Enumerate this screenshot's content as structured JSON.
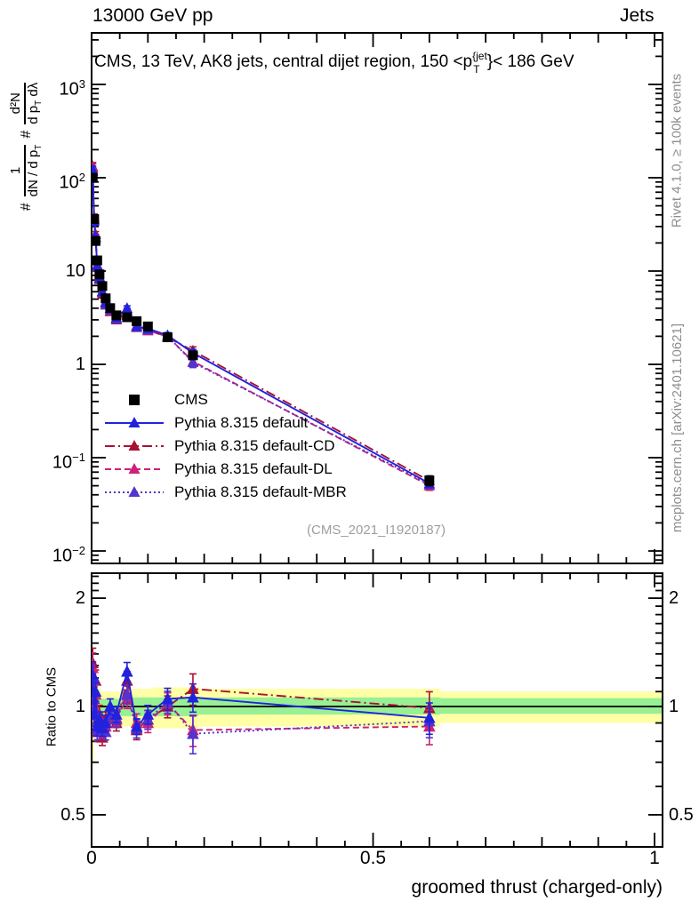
{
  "header": {
    "left": "13000 GeV pp",
    "right": "Jets"
  },
  "plot_title": {
    "prefix": "CMS, 13 TeV, AK8 jets, central dijet region, 150 <p",
    "sup": "{jet",
    "sub": "T",
    "suffix": "}< 186 GeV"
  },
  "watermark": "(CMS_2021_I1920187)",
  "side_notes": {
    "top_right": "Rivet 4.1.0, ≥ 100k events",
    "bottom_right": "mcplots.cern.ch [arXiv:2401.10621]"
  },
  "y_axis_title_parts": {
    "hash1": "#",
    "f1_num": "1",
    "f1_den": "dN / d p",
    "f1_den_sub": "T",
    "hash2": "#",
    "f2_num": "d²N",
    "f2_den_a": "d p",
    "f2_den_sub": "T",
    "f2_den_b": " dλ"
  },
  "axes": {
    "x_title": "groomed thrust (charged-only)",
    "ratio_y_title": "Ratio to CMS",
    "main_y_ticks": [
      {
        "base": "10",
        "exp": "3",
        "v": 1000
      },
      {
        "base": "10",
        "exp": "2",
        "v": 100
      },
      {
        "base": "10",
        "exp": "",
        "v": 10
      },
      {
        "base": "1",
        "exp": "",
        "v": 1
      },
      {
        "base": "10",
        "exp": "−1",
        "v": 0.1
      },
      {
        "base": "10",
        "exp": "−2",
        "v": 0.01
      }
    ],
    "ratio_y_ticks": [
      {
        "label": "2",
        "v": 2
      },
      {
        "label": "1",
        "v": 1
      },
      {
        "label": "0.5",
        "v": 0.5
      }
    ],
    "x_ticks": [
      {
        "label": "0",
        "t": 0
      },
      {
        "label": "0.5",
        "t": 0.5
      },
      {
        "label": "1",
        "t": 1
      }
    ]
  },
  "legend": [
    {
      "label": "CMS",
      "marker": "square",
      "color": "#000000",
      "line": "none"
    },
    {
      "label": "Pythia 8.315 default",
      "marker": "triangle",
      "color": "#2222dd",
      "line": "solid"
    },
    {
      "label": "Pythia 8.315 default-CD",
      "marker": "triangle",
      "color": "#aa1133",
      "line": "dashdot"
    },
    {
      "label": "Pythia 8.315 default-DL",
      "marker": "triangle",
      "color": "#cc2277",
      "line": "dashed"
    },
    {
      "label": "Pythia 8.315 default-MBR",
      "marker": "triangle",
      "color": "#5533cc",
      "line": "dotted"
    }
  ],
  "colors": {
    "cms": "#000000",
    "default": "#2222dd",
    "default_cd": "#aa1133",
    "default_dl": "#cc2277",
    "default_mbr": "#5533cc",
    "band_yellow": "#ffffa6",
    "band_green": "#97f094",
    "gray_text": "#8e8e8e"
  },
  "chart_data": {
    "type": "line",
    "title": "CMS, 13 TeV, AK8 jets, central dijet region, 150 < p_T^{jet} < 186 GeV",
    "xlabel": "groomed thrust (charged-only)",
    "x_range": [
      0,
      1
    ],
    "main_panel": {
      "yscale": "log",
      "ylim": [
        0.0074,
        3500
      ],
      "ylabel": "# 1/(dN/dp_T)  # d2N/(dp_T dlambda)",
      "x": [
        0.002,
        0.0045,
        0.007,
        0.01,
        0.014,
        0.019,
        0.025,
        0.033,
        0.044,
        0.063,
        0.08,
        0.1,
        0.135,
        0.18,
        0.6
      ],
      "cms_values": [
        100,
        36,
        21,
        13,
        9.2,
        6.9,
        5.1,
        4.0,
        3.35,
        3.2,
        2.9,
        2.55,
        1.95,
        1.25,
        0.057
      ],
      "cms_err_frac": [
        0.07,
        0.06,
        0.05,
        0.05,
        0.04,
        0.04,
        0.04,
        0.04,
        0.04,
        0.05,
        0.05,
        0.05,
        0.06,
        0.08,
        0.12
      ]
    },
    "ratio_panel": {
      "yscale": "log",
      "ylim": [
        0.41,
        2.35
      ],
      "ylabel": "Ratio to CMS",
      "series": [
        {
          "name": "Pythia 8.315 default-CD",
          "color": "#aa1133",
          "line": "dashdot",
          "ratio": [
            1.32,
            1.05,
            1.18,
            0.85,
            0.95,
            0.82,
            0.92,
            0.95,
            0.9,
            1.18,
            0.86,
            0.92,
            1.0,
            1.12,
            0.99
          ],
          "err_frac": [
            0.1,
            0.08,
            0.07,
            0.06,
            0.06,
            0.05,
            0.05,
            0.05,
            0.05,
            0.06,
            0.06,
            0.06,
            0.07,
            0.1,
            0.11
          ]
        },
        {
          "name": "Pythia 8.315 default-DL",
          "color": "#cc2277",
          "line": "dashed",
          "ratio": [
            1.28,
            1.0,
            1.08,
            0.9,
            0.88,
            0.86,
            0.88,
            0.92,
            0.93,
            1.05,
            0.9,
            0.9,
            1.02,
            0.86,
            0.88
          ],
          "err_frac": [
            0.1,
            0.08,
            0.07,
            0.06,
            0.06,
            0.05,
            0.05,
            0.05,
            0.05,
            0.06,
            0.06,
            0.06,
            0.07,
            0.1,
            0.11
          ]
        },
        {
          "name": "Pythia 8.315 default-MBR",
          "color": "#5533cc",
          "line": "dotted",
          "ratio": [
            1.18,
            0.98,
            1.1,
            0.86,
            0.9,
            0.88,
            0.85,
            0.95,
            0.92,
            1.08,
            0.87,
            0.92,
            1.03,
            0.84,
            0.91
          ],
          "err_frac": [
            0.09,
            0.08,
            0.07,
            0.06,
            0.06,
            0.05,
            0.05,
            0.05,
            0.05,
            0.06,
            0.06,
            0.06,
            0.07,
            0.12,
            0.1
          ]
        },
        {
          "name": "Pythia 8.315 default",
          "color": "#2222dd",
          "line": "solid",
          "ratio": [
            1.22,
            0.95,
            1.1,
            0.88,
            0.92,
            0.87,
            0.9,
            1.0,
            0.95,
            1.25,
            0.88,
            0.95,
            1.05,
            1.06,
            0.93
          ],
          "err_frac": [
            0.09,
            0.07,
            0.06,
            0.06,
            0.05,
            0.05,
            0.05,
            0.05,
            0.05,
            0.06,
            0.05,
            0.06,
            0.07,
            0.09,
            0.1
          ]
        }
      ],
      "bands": [
        {
          "x0": 0.0,
          "x1": 0.004,
          "yellow": [
            0.7,
            1.45
          ],
          "green": [
            0.93,
            1.08
          ]
        },
        {
          "x0": 0.004,
          "x1": 0.016,
          "yellow": [
            0.88,
            1.13
          ],
          "green": [
            0.94,
            1.06
          ]
        },
        {
          "x0": 0.016,
          "x1": 0.05,
          "yellow": [
            0.9,
            1.1
          ],
          "green": [
            0.95,
            1.05
          ]
        },
        {
          "x0": 0.05,
          "x1": 0.11,
          "yellow": [
            0.88,
            1.12
          ],
          "green": [
            0.94,
            1.06
          ]
        },
        {
          "x0": 0.11,
          "x1": 0.19,
          "yellow": [
            0.87,
            1.13
          ],
          "green": [
            0.94,
            1.06
          ]
        },
        {
          "x0": 0.19,
          "x1": 0.62,
          "yellow": [
            0.88,
            1.12
          ],
          "green": [
            0.95,
            1.06
          ]
        },
        {
          "x0": 0.62,
          "x1": 1.015,
          "yellow": [
            0.9,
            1.1
          ],
          "green": [
            0.955,
            1.055
          ]
        }
      ]
    }
  }
}
